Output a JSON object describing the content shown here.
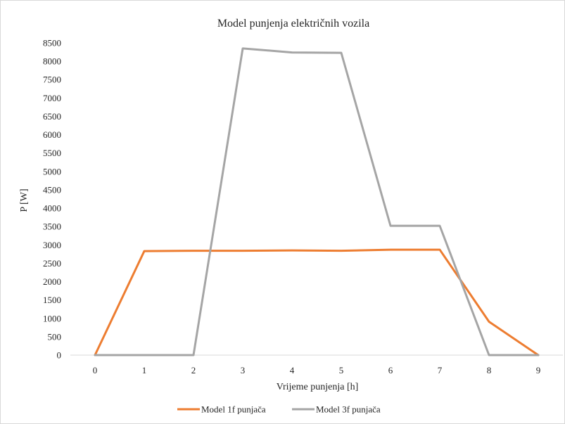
{
  "chart_data": {
    "type": "line",
    "title": "Model punjenja električnih vozila",
    "xlabel": "Vrijeme punjenja [h]",
    "ylabel": "P [W]",
    "x": [
      0,
      1,
      2,
      3,
      4,
      5,
      6,
      7,
      8,
      9
    ],
    "x_tick_labels": [
      "0",
      "1",
      "2",
      "3",
      "4",
      "5",
      "6",
      "7",
      "8",
      "9"
    ],
    "ylim": [
      0,
      8500
    ],
    "y_tick_labels": [
      "0",
      "500",
      "1000",
      "1500",
      "2000",
      "2500",
      "3000",
      "3500",
      "4000",
      "4500",
      "5000",
      "5500",
      "6000",
      "6500",
      "7000",
      "7500",
      "8000",
      "8500"
    ],
    "grid": false,
    "legend_position": "bottom",
    "series": [
      {
        "name": "Model 1f punjača",
        "color": "#ED7D31",
        "values": [
          0,
          2830,
          2840,
          2840,
          2850,
          2840,
          2870,
          2870,
          910,
          0
        ]
      },
      {
        "name": "Model 3f punjača",
        "color": "#A5A5A5",
        "values": [
          0,
          0,
          0,
          8350,
          8240,
          8230,
          3520,
          3520,
          0,
          0
        ]
      }
    ]
  }
}
